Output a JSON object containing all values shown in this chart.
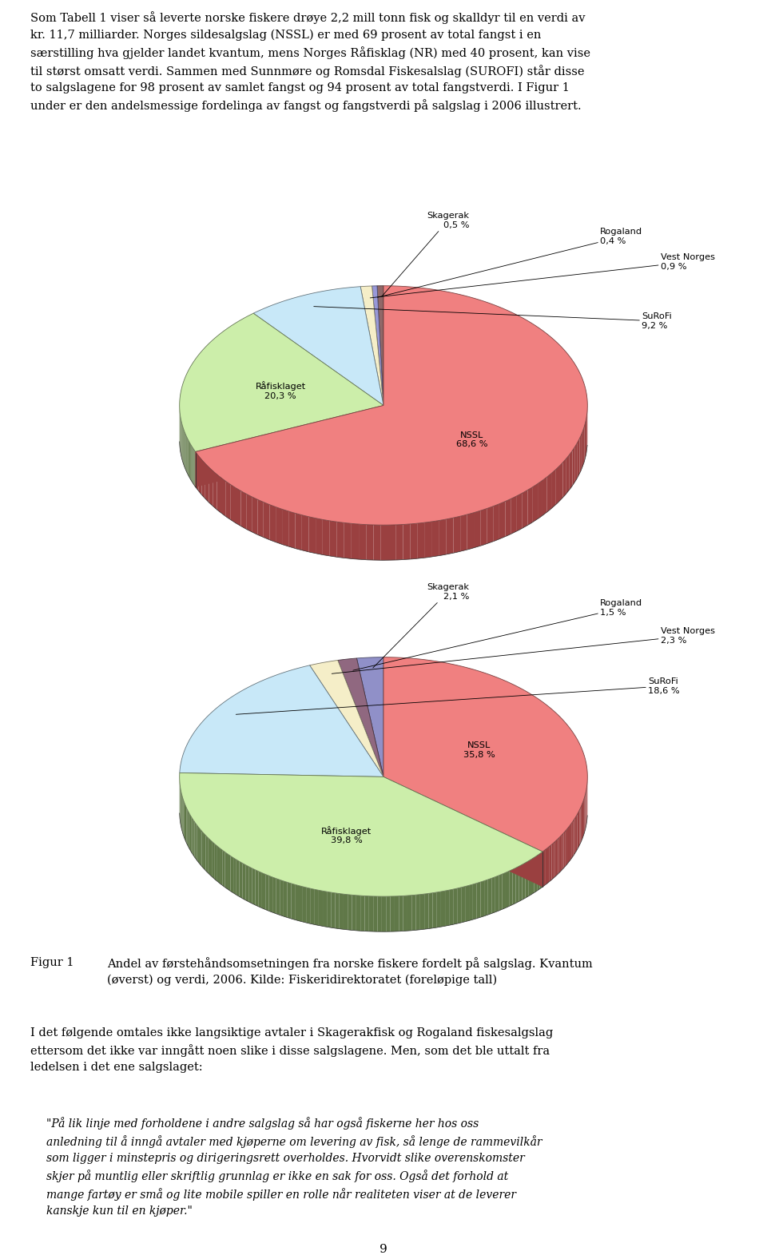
{
  "chart1": {
    "labels": [
      "NSSL",
      "Råfisklaget",
      "SuRoFi",
      "Vest Norges",
      "Rogaland",
      "Skagerak"
    ],
    "values": [
      68.6,
      20.3,
      9.2,
      0.9,
      0.4,
      0.5
    ],
    "colors_top": [
      "#F08080",
      "#CCEEAA",
      "#C8E8F8",
      "#F5EEC8",
      "#9898D8",
      "#906868"
    ],
    "colors_side": [
      "#9A4040",
      "#607848",
      "#6898A8",
      "#C0A870",
      "#6868A0",
      "#583030"
    ],
    "pct_strings": [
      "68,6 %",
      "20,3 %",
      "9,2 %",
      "0,9 %",
      "0,4 %",
      "0,5 %"
    ]
  },
  "chart2": {
    "labels": [
      "NSSL",
      "Råfisklaget",
      "SuRoFi",
      "Vest Norges",
      "Rogaland",
      "Skagerak"
    ],
    "values": [
      35.8,
      39.8,
      18.6,
      2.3,
      1.5,
      2.1
    ],
    "colors_top": [
      "#F08080",
      "#CCEEAA",
      "#C8E8F8",
      "#F5EEC8",
      "#906880",
      "#9090C8"
    ],
    "colors_side": [
      "#9A4040",
      "#607848",
      "#6898A8",
      "#C0A870",
      "#604858",
      "#6060A0"
    ],
    "pct_strings": [
      "35,8 %",
      "39,8 %",
      "18,6 %",
      "2,3 %",
      "1,5 %",
      "2,1 %"
    ]
  },
  "intro_text": "Som Tabell 1 viser så leverte norske fiskere drøye 2,2 mill tonn fisk og skalldyr til en verdi av\nkr. 11,7 milliarder. Norges sildesalgslag (NSSL) er med 69 prosent av total fangst i en\nsærstilling hva gjelder landet kvantum, mens Norges Råfisklag (NR) med 40 prosent, kan vise\ntil størst omsatt verdi. Sammen med Sunnmøre og Romsdal Fiskesalslag (SUROFI) står disse\nto salgslagene for 98 prosent av samlet fangst og 94 prosent av total fangstverdi. I Figur 1\nunder er den andelsmessige fordelinga av fangst og fangstverdi på salgslag i 2006 illustrert.",
  "figur_number": "Figur 1",
  "figur_caption": "Andel av førstehåndsomsetningen fra norske fiskere fordelt på salgslag. Kvantum\n(øverst) og verdi, 2006. Kilde: Fiskeridirektoratet (foreløpige tall)",
  "body_text": "I det følgende omtales ikke langsiktige avtaler i Skagerakfisk og Rogaland fiskesalgslag\nettersom det ikke var inngått noen slike i disse salgslagene. Men, som det ble uttalt fra\nledelsen i det ene salgslaget:",
  "quote_text": "\"På lik linje med forholdene i andre salgslag så har også fiskerne her hos oss\nanledning til å inngå avtaler med kjøperne om levering av fisk, så lenge de rammevilkår\nsom ligger i minstepris og dirigeringsrett overholdes. Hvorvidt slike overenskomster\nskjer på muntlig eller skriftlig grunnlag er ikke en sak for oss. Også det forhold at\nmange fartøy er små og lite mobile spiller en rolle når realiteten viser at de leverer\nkanskje kun til en kjøper.\"",
  "page_number": "9"
}
